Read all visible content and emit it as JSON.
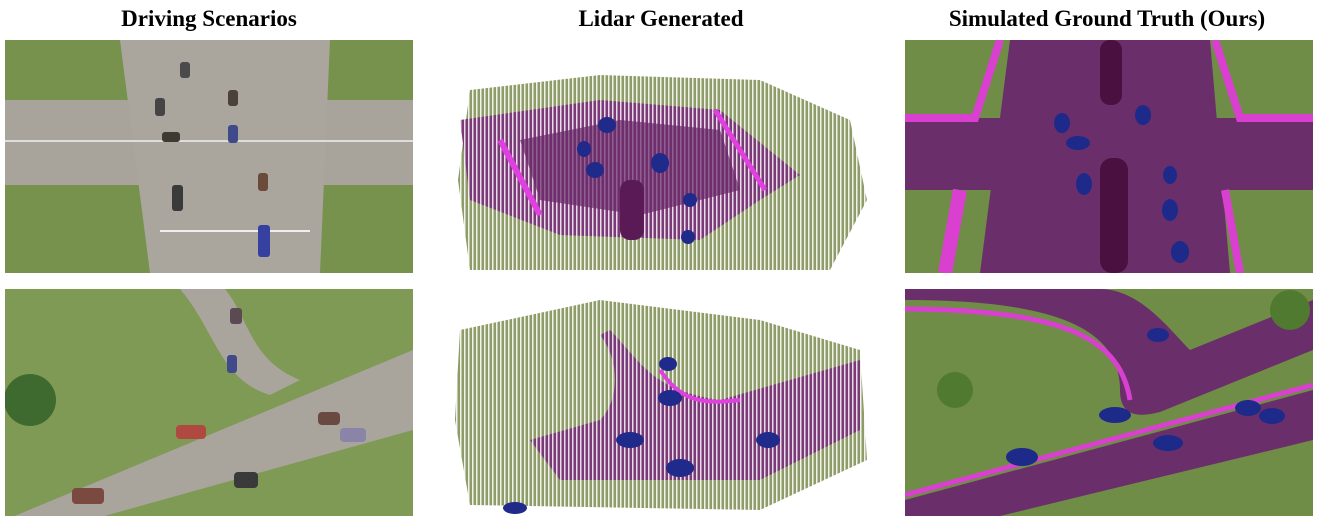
{
  "columns": [
    {
      "title": "Driving Scenarios"
    },
    {
      "title": "Lidar Generated"
    },
    {
      "title": "Simulated Ground Truth (Ours)"
    }
  ]
}
